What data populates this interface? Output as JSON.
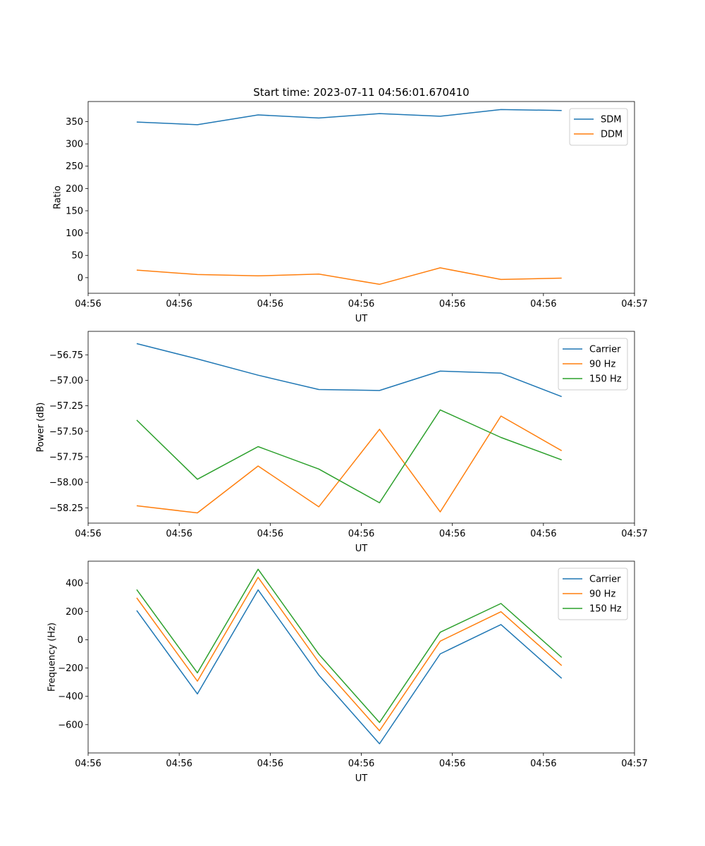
{
  "figure": {
    "title": "Start time: 2023-07-11 04:56:01.670410"
  },
  "colors": {
    "blue": "#1f77b4",
    "orange": "#ff7f0e",
    "green": "#2ca02c"
  },
  "chart_data": [
    {
      "type": "line",
      "title": "Start time: 2023-07-11 04:56:01.670410",
      "xlabel": "UT",
      "ylabel": "Ratio",
      "x": [
        1.0,
        2.0,
        3.0,
        4.0,
        5.0,
        6.0,
        7.0,
        8.0
      ],
      "xlim": [
        0.2,
        9.2
      ],
      "x_ticks": [
        0.2,
        1.7,
        3.2,
        4.7,
        6.2,
        7.7,
        9.2
      ],
      "x_tick_labels": [
        "04:56",
        "04:56",
        "04:56",
        "04:56",
        "04:56",
        "04:56",
        "04:57"
      ],
      "ylim": [
        -35,
        395
      ],
      "y_ticks": [
        0,
        50,
        100,
        150,
        200,
        250,
        300,
        350
      ],
      "y_tick_labels": [
        "0",
        "50",
        "100",
        "150",
        "200",
        "250",
        "300",
        "350"
      ],
      "legend_position": "top-right",
      "series": [
        {
          "name": "SDM",
          "color": "#1f77b4",
          "values": [
            349,
            343,
            365,
            358,
            368,
            362,
            377,
            375
          ]
        },
        {
          "name": "DDM",
          "color": "#ff7f0e",
          "values": [
            17,
            7,
            4,
            8,
            -15,
            22,
            -4,
            -1
          ]
        }
      ]
    },
    {
      "type": "line",
      "xlabel": "UT",
      "ylabel": "Power (dB)",
      "x": [
        1.0,
        2.0,
        3.0,
        4.0,
        5.0,
        6.0,
        7.0,
        8.0
      ],
      "xlim": [
        0.2,
        9.2
      ],
      "x_ticks": [
        0.2,
        1.7,
        3.2,
        4.7,
        6.2,
        7.7,
        9.2
      ],
      "x_tick_labels": [
        "04:56",
        "04:56",
        "04:56",
        "04:56",
        "04:56",
        "04:56",
        "04:57"
      ],
      "ylim": [
        -58.4,
        -56.52
      ],
      "y_ticks": [
        -58.25,
        -58.0,
        -57.75,
        -57.5,
        -57.25,
        -57.0,
        -56.75
      ],
      "y_tick_labels": [
        "−58.25",
        "−58.00",
        "−57.75",
        "−57.50",
        "−57.25",
        "−57.00",
        "−56.75"
      ],
      "legend_position": "top-right",
      "series": [
        {
          "name": "Carrier",
          "color": "#1f77b4",
          "values": [
            -56.64,
            -56.79,
            -56.95,
            -57.09,
            -57.1,
            -56.91,
            -56.93,
            -57.16
          ]
        },
        {
          "name": "90 Hz",
          "color": "#ff7f0e",
          "values": [
            -58.23,
            -58.3,
            -57.84,
            -58.24,
            -57.48,
            -58.29,
            -57.35,
            -57.69
          ]
        },
        {
          "name": "150 Hz",
          "color": "#2ca02c",
          "values": [
            -57.39,
            -57.97,
            -57.65,
            -57.87,
            -58.2,
            -57.29,
            -57.56,
            -57.78
          ]
        }
      ]
    },
    {
      "type": "line",
      "xlabel": "UT",
      "ylabel": "Frequency (Hz)",
      "x": [
        1.0,
        2.0,
        3.0,
        4.0,
        5.0,
        6.0,
        7.0,
        8.0
      ],
      "xlim": [
        0.2,
        9.2
      ],
      "x_ticks": [
        0.2,
        1.7,
        3.2,
        4.7,
        6.2,
        7.7,
        9.2
      ],
      "x_tick_labels": [
        "04:56",
        "04:56",
        "04:56",
        "04:56",
        "04:56",
        "04:56",
        "04:57"
      ],
      "ylim": [
        -800,
        555
      ],
      "y_ticks": [
        -600,
        -400,
        -200,
        0,
        200,
        400
      ],
      "y_tick_labels": [
        "−600",
        "−400",
        "−200",
        "0",
        "200",
        "400"
      ],
      "legend_position": "top-right",
      "series": [
        {
          "name": "Carrier",
          "color": "#1f77b4",
          "values": [
            207,
            -383,
            352,
            -250,
            -735,
            -100,
            107,
            -273
          ]
        },
        {
          "name": "90 Hz",
          "color": "#ff7f0e",
          "values": [
            296,
            -293,
            441,
            -160,
            -643,
            -10,
            198,
            -183
          ]
        },
        {
          "name": "150 Hz",
          "color": "#2ca02c",
          "values": [
            354,
            -234,
            498,
            -102,
            -585,
            53,
            256,
            -125
          ]
        }
      ]
    }
  ]
}
